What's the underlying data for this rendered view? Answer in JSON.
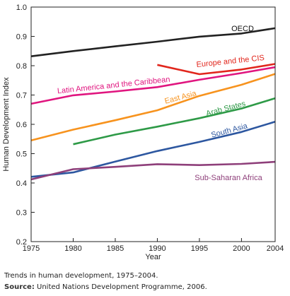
{
  "chart_data": {
    "type": "line",
    "title": "",
    "xlabel": "Year",
    "ylabel": "Human Development Index",
    "xlim": [
      1975,
      2004
    ],
    "ylim": [
      0.2,
      1.0
    ],
    "x_ticks": [
      "1975",
      "1980",
      "1985",
      "1990",
      "1995",
      "2000",
      "2004"
    ],
    "y_ticks": [
      "0.2",
      "0.3",
      "0.4",
      "0.5",
      "0.6",
      "0.7",
      "0.8",
      "0.9",
      "1.0"
    ],
    "grid": false,
    "series": [
      {
        "name": "OECD",
        "color": "#222222",
        "x": [
          1975,
          1980,
          1985,
          1990,
          1995,
          2000,
          2004
        ],
        "y": [
          0.832,
          0.85,
          0.866,
          0.882,
          0.899,
          0.91,
          0.928
        ]
      },
      {
        "name": "Europe and the CIS",
        "color": "#e1261c",
        "x": [
          1990,
          1995,
          2000,
          2004
        ],
        "y": [
          0.803,
          0.771,
          0.787,
          0.806
        ]
      },
      {
        "name": "Latin America and the Caribbean",
        "color": "#e0157f",
        "x": [
          1975,
          1980,
          1985,
          1990,
          1995,
          2000,
          2004
        ],
        "y": [
          0.67,
          0.699,
          0.712,
          0.727,
          0.752,
          0.775,
          0.795
        ]
      },
      {
        "name": "East Asia",
        "color": "#f7931e",
        "x": [
          1975,
          1980,
          1985,
          1990,
          1995,
          2000,
          2004
        ],
        "y": [
          0.545,
          0.582,
          0.614,
          0.648,
          0.697,
          0.735,
          0.772
        ]
      },
      {
        "name": "Arab States",
        "color": "#2e9a47",
        "x": [
          1980,
          1985,
          1990,
          1995,
          2000,
          2004
        ],
        "y": [
          0.532,
          0.565,
          0.592,
          0.621,
          0.654,
          0.689
        ]
      },
      {
        "name": "South Asia",
        "color": "#2d57a0",
        "x": [
          1975,
          1980,
          1985,
          1990,
          1995,
          2000,
          2004
        ],
        "y": [
          0.421,
          0.436,
          0.473,
          0.509,
          0.54,
          0.574,
          0.609
        ]
      },
      {
        "name": "Sub-Saharan Africa",
        "color": "#8e3f7a",
        "x": [
          1975,
          1980,
          1985,
          1990,
          1995,
          2000,
          2004
        ],
        "y": [
          0.412,
          0.447,
          0.455,
          0.464,
          0.461,
          0.465,
          0.472
        ]
      }
    ]
  },
  "caption": "Trends in human development, 1975–2004.",
  "source_label": "Source:",
  "source_text": " United Nations Development Programme, 2006."
}
